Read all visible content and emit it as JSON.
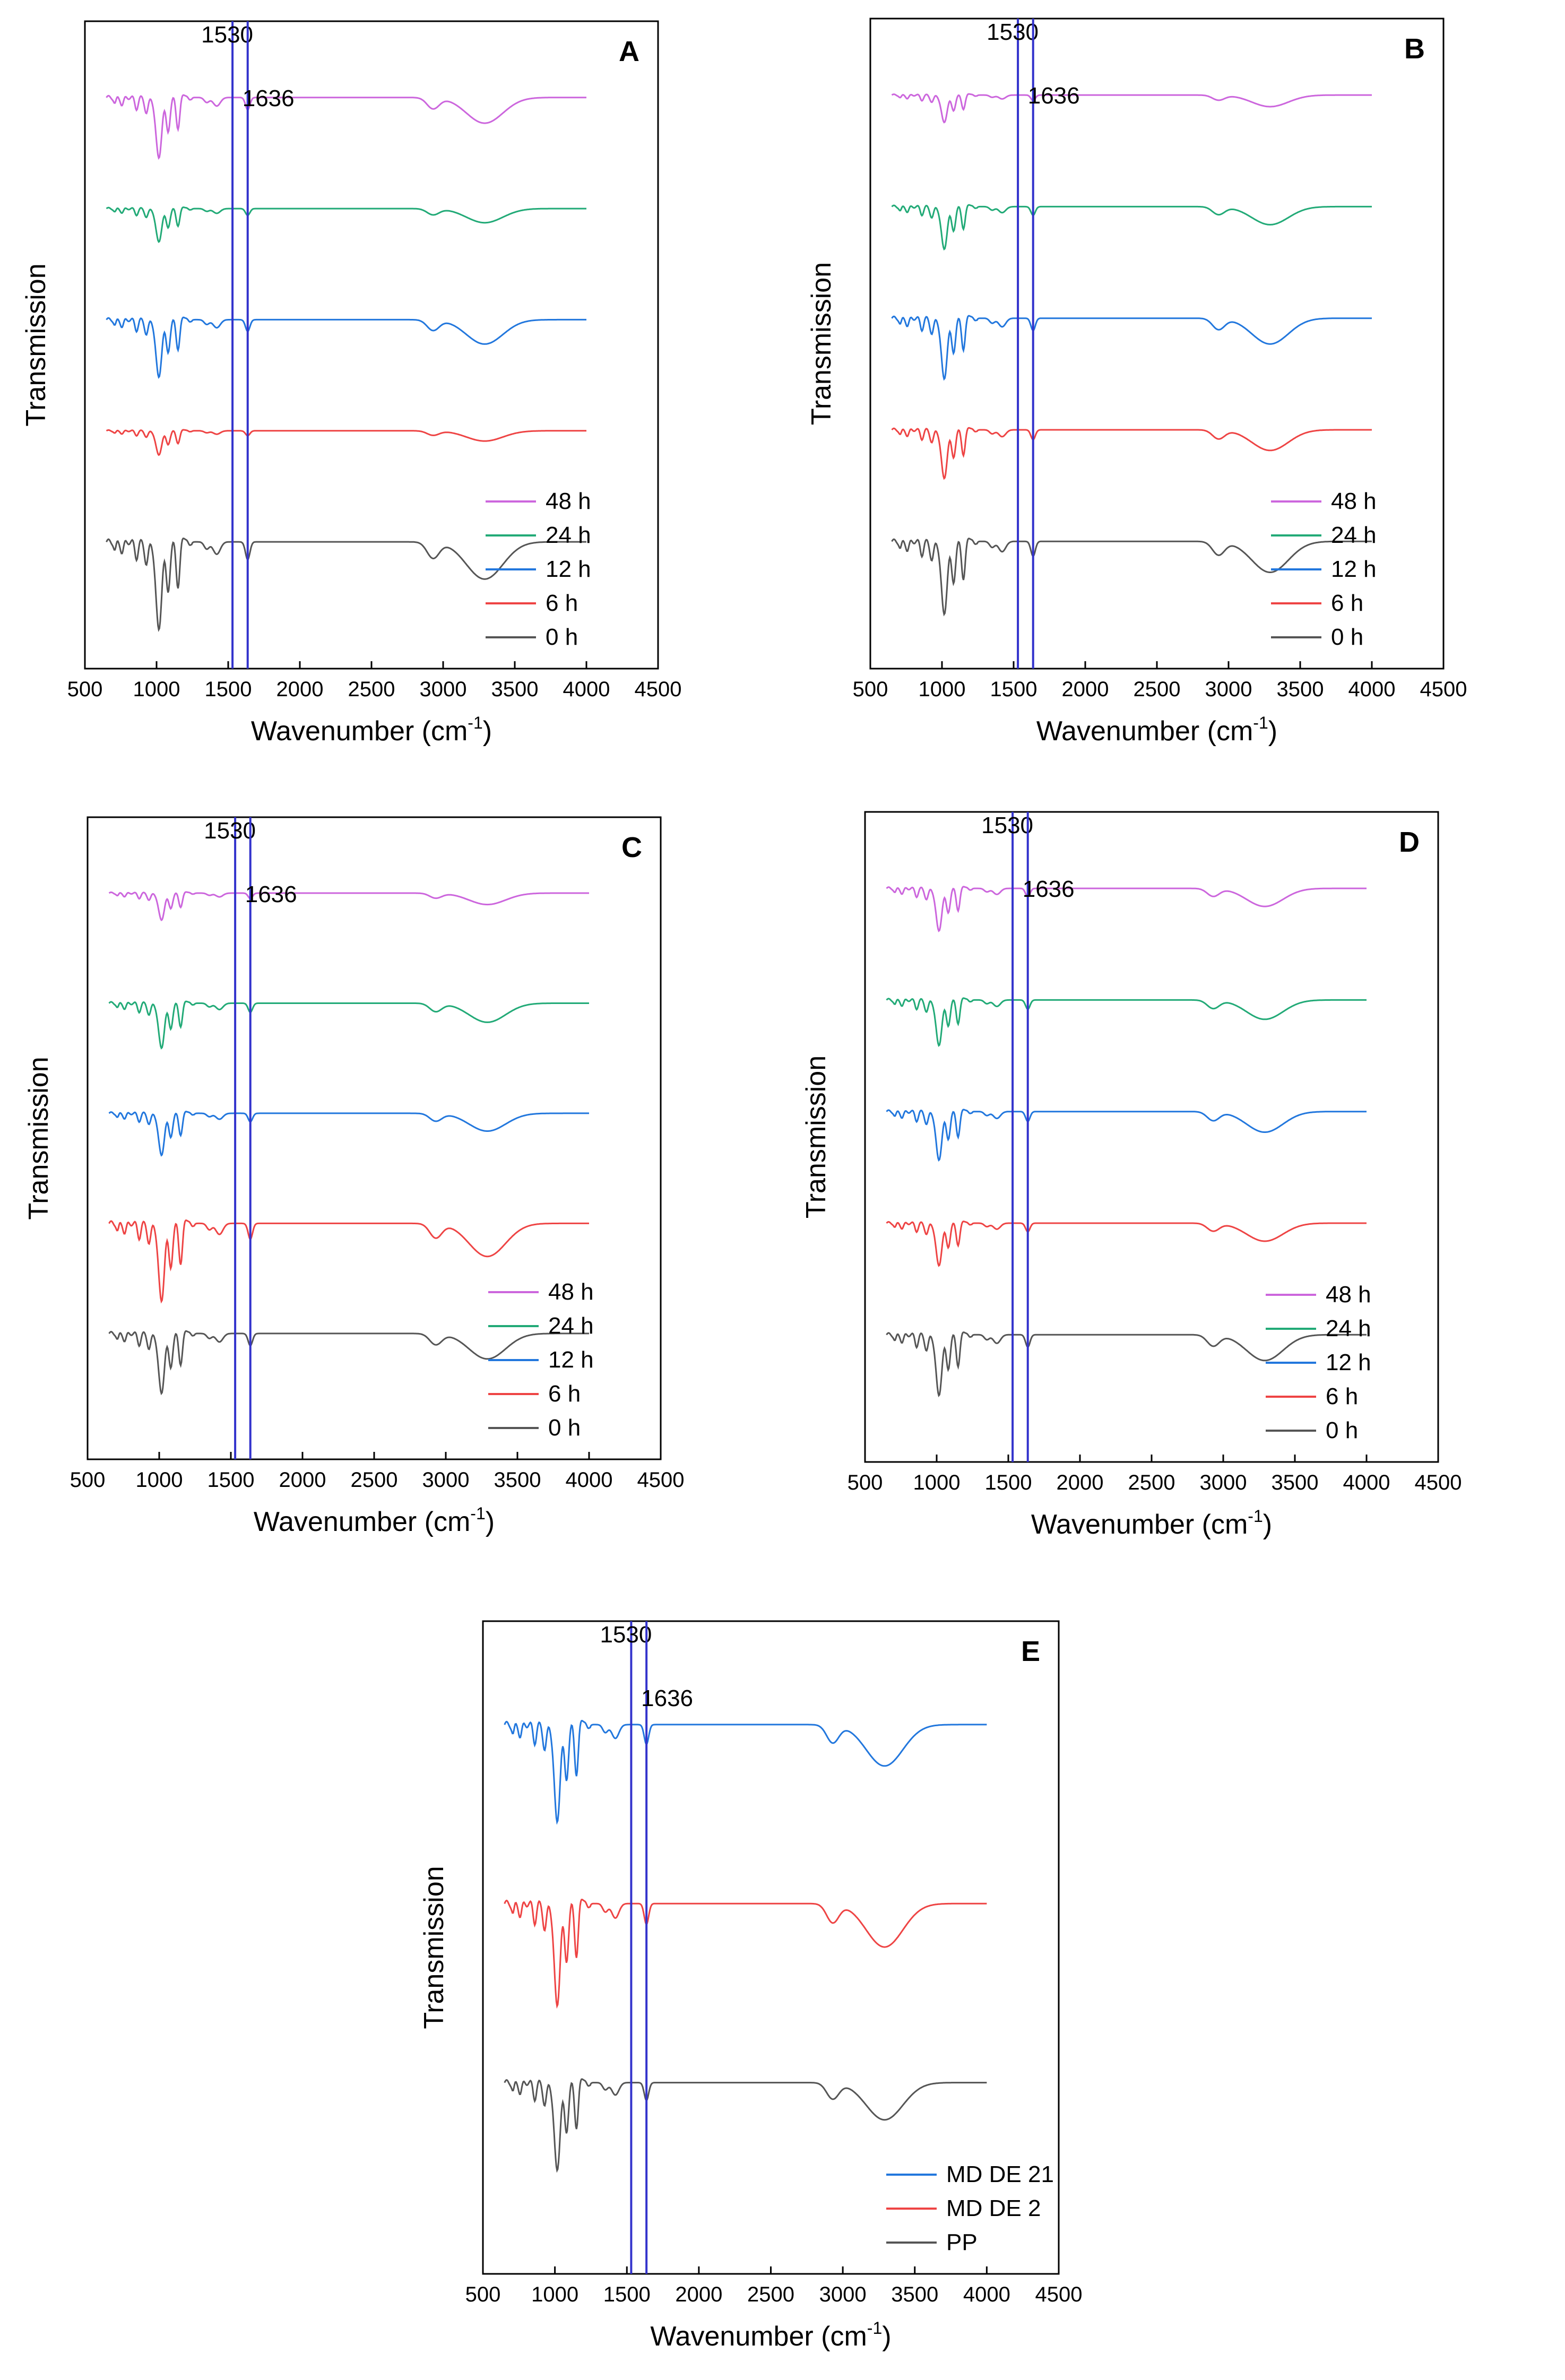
{
  "chart_data": [
    {
      "type": "line",
      "panel": "A",
      "xlabel": "Wavenumber (cm",
      "xlabel_sup": "-1",
      "xlabel_close": ")",
      "ylabel": "Transmission",
      "xlim": [
        500,
        4500
      ],
      "xticks": [
        500,
        1000,
        1500,
        2000,
        2500,
        3000,
        3500,
        4000,
        4500
      ],
      "markers": [
        {
          "x": 1530,
          "label": "1530"
        },
        {
          "x": 1636,
          "label": "1636"
        }
      ],
      "legend": "bottom-right",
      "series": [
        {
          "name": "48 h",
          "color": "#cc66dd",
          "offset": 4,
          "amp": 1.0
        },
        {
          "name": "24 h",
          "color": "#22aa77",
          "offset": 3,
          "amp": 0.55
        },
        {
          "name": "12 h",
          "color": "#2277dd",
          "offset": 2,
          "amp": 0.95
        },
        {
          "name": "6 h",
          "color": "#ee4444",
          "offset": 1,
          "amp": 0.4
        },
        {
          "name": "0 h",
          "color": "#555555",
          "offset": 0,
          "amp": 1.45
        }
      ]
    },
    {
      "type": "line",
      "panel": "B",
      "xlabel": "Wavenumber (cm",
      "xlabel_sup": "-1",
      "xlabel_close": ")",
      "ylabel": "Transmission",
      "xlim": [
        500,
        4500
      ],
      "xticks": [
        500,
        1000,
        1500,
        2000,
        2500,
        3000,
        3500,
        4000,
        4500
      ],
      "markers": [
        {
          "x": 1530,
          "label": "1530"
        },
        {
          "x": 1636,
          "label": "1636"
        }
      ],
      "legend": "bottom-right",
      "series": [
        {
          "name": "48 h",
          "color": "#cc66dd",
          "offset": 4,
          "amp": 0.45
        },
        {
          "name": "24 h",
          "color": "#22aa77",
          "offset": 3,
          "amp": 0.7
        },
        {
          "name": "12 h",
          "color": "#2277dd",
          "offset": 2,
          "amp": 1.0
        },
        {
          "name": "6 h",
          "color": "#ee4444",
          "offset": 1,
          "amp": 0.8
        },
        {
          "name": "0 h",
          "color": "#555555",
          "offset": 0,
          "amp": 1.2
        }
      ]
    },
    {
      "type": "line",
      "panel": "C",
      "xlabel": "Wavenumber (cm",
      "xlabel_sup": "-1",
      "xlabel_close": ")",
      "ylabel": "Transmission",
      "xlim": [
        500,
        4500
      ],
      "xticks": [
        500,
        1000,
        1500,
        2000,
        2500,
        3000,
        3500,
        4000,
        4500
      ],
      "markers": [
        {
          "x": 1530,
          "label": "1530"
        },
        {
          "x": 1636,
          "label": "1636"
        }
      ],
      "legend": "bottom-right",
      "series": [
        {
          "name": "48 h",
          "color": "#cc66dd",
          "offset": 4,
          "amp": 0.45
        },
        {
          "name": "24 h",
          "color": "#22aa77",
          "offset": 3,
          "amp": 0.75
        },
        {
          "name": "12 h",
          "color": "#2277dd",
          "offset": 2,
          "amp": 0.7
        },
        {
          "name": "6 h",
          "color": "#ee4444",
          "offset": 1,
          "amp": 1.3
        },
        {
          "name": "0 h",
          "color": "#555555",
          "offset": 0,
          "amp": 1.0
        }
      ]
    },
    {
      "type": "line",
      "panel": "D",
      "xlabel": "Wavenumber (cm",
      "xlabel_sup": "-1",
      "xlabel_close": ")",
      "ylabel": "Transmission",
      "xlim": [
        500,
        4500
      ],
      "xticks": [
        500,
        1000,
        1500,
        2000,
        2500,
        3000,
        3500,
        4000,
        4500
      ],
      "markers": [
        {
          "x": 1530,
          "label": "1530"
        },
        {
          "x": 1636,
          "label": "1636"
        }
      ],
      "legend": "bottom-right",
      "series": [
        {
          "name": "48 h",
          "color": "#cc66dd",
          "offset": 4,
          "amp": 0.7
        },
        {
          "name": "24 h",
          "color": "#22aa77",
          "offset": 3,
          "amp": 0.75
        },
        {
          "name": "12 h",
          "color": "#2277dd",
          "offset": 2,
          "amp": 0.8
        },
        {
          "name": "6 h",
          "color": "#ee4444",
          "offset": 1,
          "amp": 0.7
        },
        {
          "name": "0 h",
          "color": "#555555",
          "offset": 0,
          "amp": 1.0
        }
      ]
    },
    {
      "type": "line",
      "panel": "E",
      "xlabel": "Wavenumber (cm",
      "xlabel_sup": "-1",
      "xlabel_close": ")",
      "ylabel": "Transmission",
      "xlim": [
        500,
        4500
      ],
      "xticks": [
        500,
        1000,
        1500,
        2000,
        2500,
        3000,
        3500,
        4000,
        4500
      ],
      "markers": [
        {
          "x": 1530,
          "label": "1530"
        },
        {
          "x": 1636,
          "label": "1636"
        }
      ],
      "legend": "bottom-right",
      "series": [
        {
          "name": "MD DE 21",
          "color": "#2277dd",
          "offset": 2,
          "amp": 1.0
        },
        {
          "name": "MD DE 2",
          "color": "#ee4444",
          "offset": 1,
          "amp": 1.05
        },
        {
          "name": "PP",
          "color": "#555555",
          "offset": 0,
          "amp": 0.9
        }
      ]
    }
  ]
}
